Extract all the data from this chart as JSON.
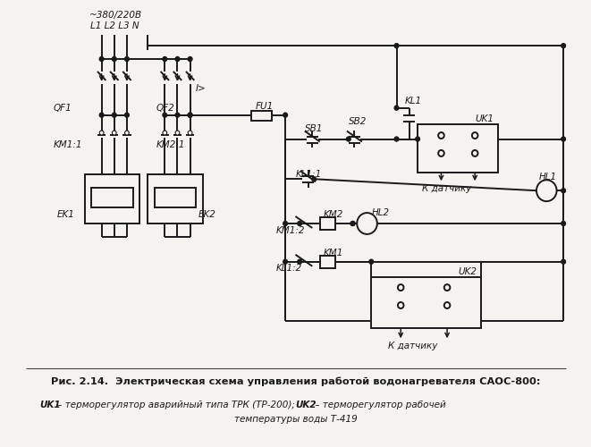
{
  "bg_color": "#f5f3ef",
  "line_color": "#1a1a1a",
  "text_color": "#1a1a1a",
  "title_bold": "Рис. 2.14.  Электрическая схема управления работой водонагревателя САОС-800:",
  "caption_line2_pre": "UK1",
  "caption_line2_mid": " – терморегулятор аварийный типа ТРК (ТР-200); ",
  "caption_line2_uk2": "UK2",
  "caption_line2_post": " – терморегулятор рабочей",
  "caption_line3": "температуры воды Т-419",
  "fig_width": 6.61,
  "fig_height": 5.0,
  "dpi": 100
}
